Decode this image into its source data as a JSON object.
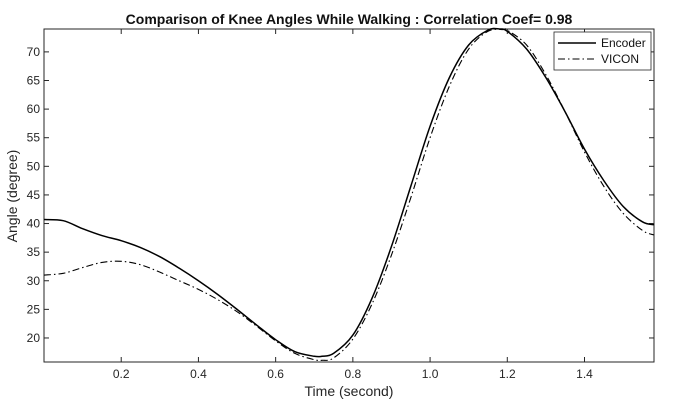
{
  "chart_data": {
    "type": "line",
    "title": "Comparison of Knee Angles While Walking : Correlation Coef= 0.98",
    "xlabel": "Time (second)",
    "ylabel": "Angle (degree)",
    "xlim": [
      0.0,
      1.58
    ],
    "ylim": [
      15.8,
      74.0
    ],
    "xticks": [
      0.2,
      0.4,
      0.6,
      0.8,
      1.0,
      1.2,
      1.4
    ],
    "xtick_labels": [
      "0.2",
      "0.4",
      "0.6",
      "0.8",
      "1.0",
      "1.2",
      "1.4"
    ],
    "yticks": [
      20,
      25,
      30,
      35,
      40,
      45,
      50,
      55,
      60,
      65,
      70
    ],
    "ytick_labels": [
      "20",
      "25",
      "30",
      "35",
      "40",
      "45",
      "50",
      "55",
      "60",
      "65",
      "70"
    ],
    "grid": false,
    "legend_position": "top-right",
    "series": [
      {
        "name": "Encoder",
        "line_style": "solid",
        "color": "#000000",
        "x": [
          0.0,
          0.05,
          0.1,
          0.15,
          0.2,
          0.25,
          0.3,
          0.35,
          0.4,
          0.45,
          0.5,
          0.55,
          0.6,
          0.65,
          0.7,
          0.72,
          0.75,
          0.8,
          0.85,
          0.9,
          0.95,
          1.0,
          1.05,
          1.1,
          1.15,
          1.18,
          1.2,
          1.25,
          1.3,
          1.35,
          1.4,
          1.45,
          1.5,
          1.55,
          1.58
        ],
        "y": [
          40.7,
          40.5,
          39.1,
          37.9,
          37.0,
          35.8,
          34.2,
          32.2,
          30.0,
          27.6,
          25.0,
          22.3,
          19.7,
          17.6,
          16.8,
          16.8,
          17.3,
          20.5,
          27.0,
          36.0,
          46.5,
          57.0,
          65.5,
          71.2,
          73.8,
          74.0,
          73.6,
          70.5,
          65.5,
          59.5,
          53.0,
          47.5,
          43.0,
          40.3,
          39.8
        ]
      },
      {
        "name": "VICON",
        "line_style": "dash-dot",
        "color": "#000000",
        "x": [
          0.0,
          0.05,
          0.1,
          0.15,
          0.2,
          0.25,
          0.3,
          0.35,
          0.4,
          0.45,
          0.5,
          0.55,
          0.6,
          0.65,
          0.7,
          0.72,
          0.75,
          0.8,
          0.85,
          0.9,
          0.95,
          1.0,
          1.05,
          1.1,
          1.15,
          1.19,
          1.2,
          1.25,
          1.3,
          1.35,
          1.4,
          1.45,
          1.5,
          1.55,
          1.58
        ],
        "y": [
          31.0,
          31.3,
          32.3,
          33.2,
          33.4,
          32.8,
          31.5,
          30.0,
          28.5,
          26.7,
          24.6,
          22.1,
          19.5,
          17.3,
          16.2,
          16.1,
          16.5,
          19.8,
          26.0,
          34.5,
          44.5,
          55.0,
          64.0,
          70.5,
          73.6,
          73.9,
          73.8,
          71.2,
          66.0,
          59.5,
          52.5,
          46.5,
          41.8,
          38.8,
          38.0
        ]
      }
    ]
  }
}
